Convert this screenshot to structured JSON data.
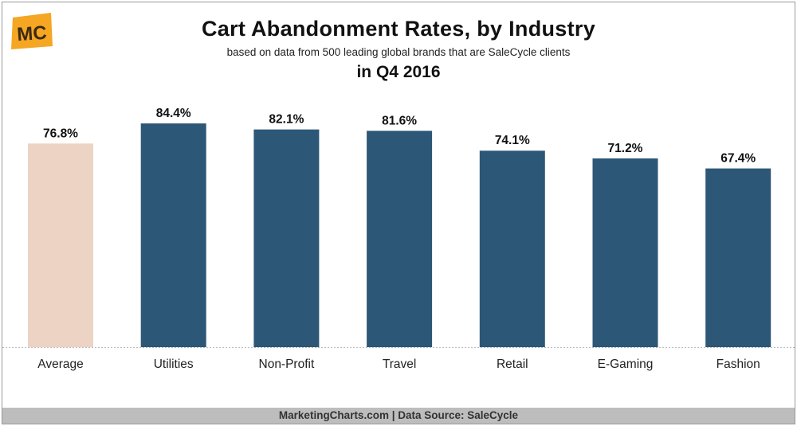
{
  "logo": {
    "text": "MC",
    "color": "#f5a623"
  },
  "title": "Cart Abandonment Rates, by Industry",
  "subtitle": "based on data from 500 leading global brands that are SaleCycle clients",
  "period": "in Q4 2016",
  "footer": "MarketingCharts.com | Data Source: SaleCycle",
  "chart_data": {
    "type": "bar",
    "categories": [
      "Average",
      "Utilities",
      "Non-Profit",
      "Travel",
      "Retail",
      "E-Gaming",
      "Fashion"
    ],
    "values": [
      76.8,
      84.4,
      82.1,
      81.6,
      74.1,
      71.2,
      67.4
    ],
    "value_labels": [
      "76.8%",
      "84.4%",
      "82.1%",
      "81.6%",
      "74.1%",
      "71.2%",
      "67.4%"
    ],
    "unit": "%",
    "ylim": [
      0,
      100
    ],
    "grid": false,
    "legend": "none",
    "colors": {
      "primary": "#2d5777",
      "highlight": "#ecd3c3"
    },
    "highlight_index": 0
  }
}
